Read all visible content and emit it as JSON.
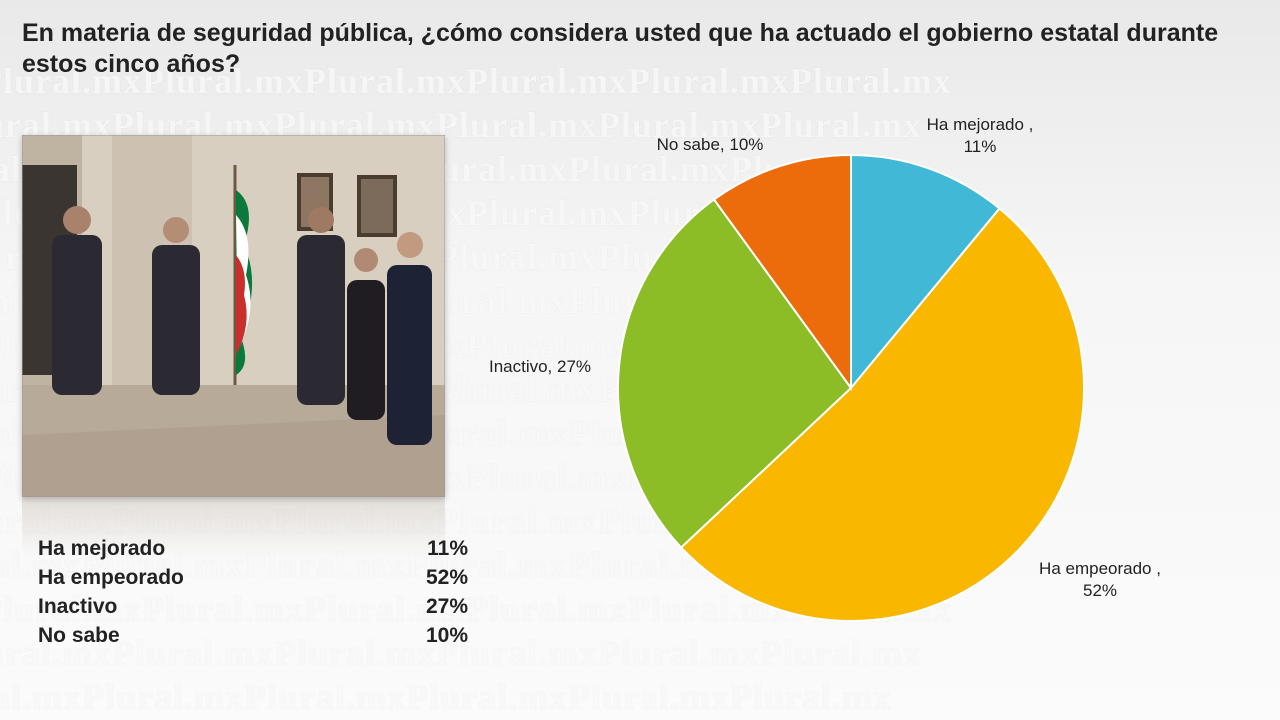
{
  "title": "En materia de seguridad pública, ¿cómo considera usted que ha actuado el gobierno estatal durante estos cinco años?",
  "watermark_text": "Plural.mxPlural.mxPlural.mxPlural.mxPlural.mxPlural.mx",
  "summary": [
    {
      "label": "Ha mejorado",
      "value": "11%"
    },
    {
      "label": "Ha empeorado",
      "value": "52%"
    },
    {
      "label": "Inactivo",
      "value": "27%"
    },
    {
      "label": "No sabe",
      "value": "10%"
    }
  ],
  "chart_data": {
    "type": "pie",
    "start_angle": "12 o'clock",
    "direction": "clockwise",
    "slices": [
      {
        "name": "Ha mejorado",
        "value": 11,
        "label_line1": "Ha mejorado ,",
        "label_line2": "11%",
        "color": "#41b8d5"
      },
      {
        "name": "Ha empeorado",
        "value": 52,
        "label_line1": "Ha empeorado ,",
        "label_line2": "52%",
        "color": "#f9b700"
      },
      {
        "name": "Inactivo",
        "value": 27,
        "label_line1": "Inactivo, 27%",
        "label_line2": "",
        "color": "#8cbc26"
      },
      {
        "name": "No sabe",
        "value": 10,
        "label_line1": "No sabe, 10%",
        "label_line2": "",
        "color": "#ec6c0b"
      }
    ]
  }
}
